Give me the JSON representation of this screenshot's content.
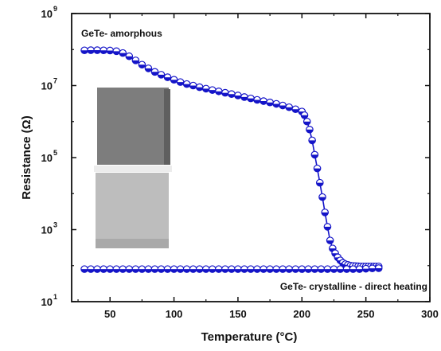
{
  "chart_data": {
    "type": "line",
    "xlabel": "Temperature (°C)",
    "ylabel": "Resistance (Ω)",
    "xlim": [
      20,
      300
    ],
    "ylim": [
      10,
      1000000000
    ],
    "yscale": "log",
    "x_ticks": [
      "50",
      "100",
      "150",
      "200",
      "250",
      "300"
    ],
    "y_ticks": [
      {
        "base": "10",
        "exp": "1",
        "value": 10
      },
      {
        "base": "10",
        "exp": "3",
        "value": 1000
      },
      {
        "base": "10",
        "exp": "5",
        "value": 100000
      },
      {
        "base": "10",
        "exp": "7",
        "value": 10000000
      },
      {
        "base": "10",
        "exp": "9",
        "value": 1000000000
      }
    ],
    "grid": false,
    "annotations": [
      {
        "text": "GeTe- amorphous"
      },
      {
        "text": "GeTe- crystalline - direct heating"
      }
    ],
    "series": [
      {
        "label": "GeTe- amorphous",
        "color": "#1414c8",
        "x": [
          30,
          35,
          40,
          45,
          50,
          55,
          60,
          65,
          70,
          75,
          80,
          85,
          90,
          95,
          100,
          105,
          110,
          115,
          120,
          125,
          130,
          135,
          140,
          145,
          150,
          155,
          160,
          165,
          170,
          175,
          180,
          185,
          190,
          195,
          200,
          202,
          204,
          206,
          208,
          210,
          212,
          214,
          216,
          218,
          220,
          222,
          224,
          226,
          228,
          230,
          232,
          234,
          236,
          238,
          240,
          242,
          244,
          246,
          248,
          250,
          252,
          254,
          256,
          258,
          260
        ],
        "y": [
          95000000,
          96000000,
          96000000,
          95000000,
          94000000,
          90000000,
          80000000,
          65000000,
          50000000,
          38000000,
          30000000,
          24000000,
          20000000,
          17000000,
          14500000,
          12500000,
          11000000,
          10000000,
          9000000,
          8200000,
          7500000,
          6900000,
          6300000,
          5800000,
          5300000,
          4800000,
          4400000,
          4000000,
          3700000,
          3400000,
          3100000,
          2800000,
          2500000,
          2200000,
          1900000,
          1500000,
          1000000,
          600000,
          300000,
          120000,
          50000,
          20000,
          8000,
          3000,
          1200,
          500,
          300,
          220,
          170,
          140,
          120,
          110,
          105,
          100,
          98,
          97,
          96,
          95,
          95,
          95,
          95,
          95,
          95,
          95,
          95
        ]
      },
      {
        "label": "GeTe- crystalline - direct heating",
        "color": "#1414c8",
        "x": [
          30,
          35,
          40,
          45,
          50,
          55,
          60,
          65,
          70,
          75,
          80,
          85,
          90,
          95,
          100,
          105,
          110,
          115,
          120,
          125,
          130,
          135,
          140,
          145,
          150,
          155,
          160,
          165,
          170,
          175,
          180,
          185,
          190,
          195,
          200,
          205,
          210,
          215,
          220,
          225,
          230,
          235,
          240,
          245,
          250,
          255,
          260
        ],
        "y": [
          80,
          80,
          80,
          80,
          80,
          80,
          80,
          80,
          80,
          80,
          80,
          80,
          80,
          80,
          80,
          80,
          80,
          80,
          80,
          80,
          80,
          80,
          80,
          80,
          80,
          80,
          80,
          80,
          80,
          80,
          80,
          80,
          80,
          80,
          80,
          80,
          80,
          80,
          80,
          80,
          80,
          80,
          80,
          80,
          82,
          84,
          85
        ]
      }
    ]
  }
}
